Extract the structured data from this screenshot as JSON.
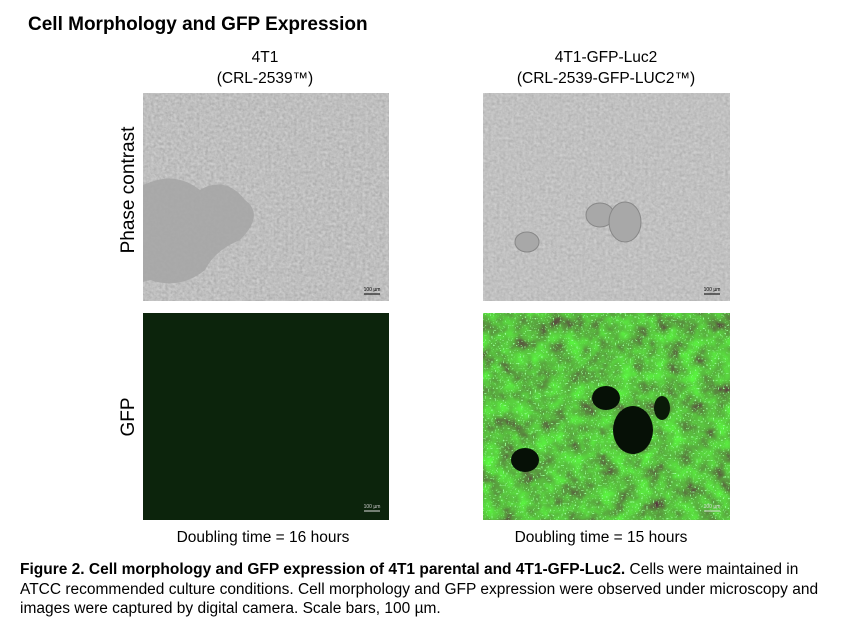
{
  "title": "Cell Morphology and GFP Expression",
  "columns": [
    {
      "name": "4T1",
      "catalog": "(CRL-2539™)",
      "doubling_time": "Doubling time = 16 hours"
    },
    {
      "name": "4T1-GFP-Luc2",
      "catalog": "(CRL-2539-GFP-LUC2™)",
      "doubling_time": "Doubling time = 15 hours"
    }
  ],
  "rows": [
    "Phase contrast",
    "GFP"
  ],
  "scale_bar": "100 µm",
  "caption": {
    "label": "Figure 2. Cell morphology and GFP expression of 4T1 parental and 4T1-GFP-Luc2.",
    "text": "Cells were maintained in ATCC recommended culture conditions. Cell morphology and GFP expression were observed under microscopy and images were captured by digital camera. Scale bars, 100 µm."
  }
}
